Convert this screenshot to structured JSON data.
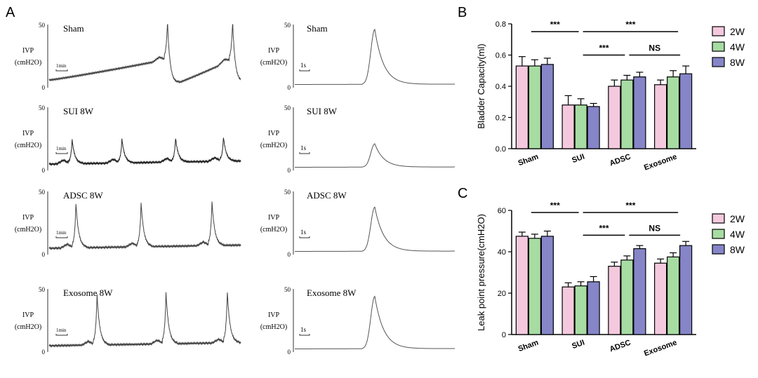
{
  "panels": {
    "a_letter": "A",
    "b_letter": "B",
    "c_letter": "C"
  },
  "traces": {
    "ylabel_line1": "IVP",
    "ylabel_line2": "(cmH2O)",
    "y_max_label": "50",
    "y_min_label": "0",
    "left_scale_label": "1min",
    "right_scale_label": "1s",
    "rows": [
      {
        "title": "Sham",
        "right_title": "Sham",
        "peak_times": [
          0.62,
          0.96
        ],
        "peak_height": 0.9,
        "right_peak": 0.87,
        "baseline": "ramp"
      },
      {
        "title": "SUI 8W",
        "right_title": "SUI 8W",
        "peak_times": [
          0.12,
          0.38,
          0.66,
          0.91
        ],
        "peak_height": 0.4,
        "right_peak": 0.37,
        "baseline": "flat"
      },
      {
        "title": "ADSC 8W",
        "right_title": "ADSC 8W",
        "peak_times": [
          0.14,
          0.48,
          0.85
        ],
        "peak_height": 0.74,
        "right_peak": 0.7,
        "baseline": "flat"
      },
      {
        "title": "Exosome 8W",
        "right_title": "Exosome 8W",
        "peak_times": [
          0.25,
          0.61,
          0.93
        ],
        "peak_height": 0.85,
        "right_peak": 0.83,
        "baseline": "flat"
      }
    ]
  },
  "chart_data": [
    {
      "type": "bar",
      "panel": "B",
      "ylabel": "Bladder Capacity(ml)",
      "categories": [
        "Sham",
        "SUI",
        "ADSC",
        "Exosome"
      ],
      "ylim": [
        0,
        0.8
      ],
      "yticks": [
        "0.0",
        "0.2",
        "0.4",
        "0.6",
        "0.8"
      ],
      "series": [
        {
          "name": "2W",
          "color": "#f4c9de",
          "values": [
            0.53,
            0.28,
            0.4,
            0.41
          ],
          "errors": [
            0.06,
            0.06,
            0.04,
            0.03
          ]
        },
        {
          "name": "4W",
          "color": "#a7dca3",
          "values": [
            0.53,
            0.28,
            0.44,
            0.46
          ],
          "errors": [
            0.04,
            0.04,
            0.03,
            0.04
          ]
        },
        {
          "name": "8W",
          "color": "#8585c8",
          "values": [
            0.54,
            0.27,
            0.46,
            0.48
          ],
          "errors": [
            0.04,
            0.02,
            0.03,
            0.05
          ]
        }
      ],
      "significance": [
        {
          "from": 0,
          "to": 1,
          "label": "***",
          "level": 0.75
        },
        {
          "from": 1,
          "to": 3,
          "label": "***",
          "level": 0.75
        },
        {
          "from": 1,
          "to": 2,
          "label": "***",
          "level": 0.6
        },
        {
          "from": 2,
          "to": 3,
          "label": "NS",
          "level": 0.6
        }
      ],
      "legend_placement": "right"
    },
    {
      "type": "bar",
      "panel": "C",
      "ylabel": "Leak point pressure(cmH2O)",
      "categories": [
        "Sham",
        "SUI",
        "ADSC",
        "Exosome"
      ],
      "ylim": [
        0,
        60
      ],
      "yticks": [
        "0",
        "20",
        "40",
        "60"
      ],
      "series": [
        {
          "name": "2W",
          "color": "#f4c9de",
          "values": [
            47.5,
            23,
            33,
            34.5
          ],
          "errors": [
            2,
            2,
            2,
            2
          ]
        },
        {
          "name": "4W",
          "color": "#a7dca3",
          "values": [
            46.5,
            23.5,
            36,
            37.5
          ],
          "errors": [
            2,
            2,
            2,
            2
          ]
        },
        {
          "name": "8W",
          "color": "#8585c8",
          "values": [
            47.5,
            25.5,
            41.5,
            43
          ],
          "errors": [
            2.5,
            2.5,
            1.5,
            2
          ]
        }
      ],
      "significance": [
        {
          "from": 0,
          "to": 1,
          "label": "***",
          "level": 59
        },
        {
          "from": 1,
          "to": 3,
          "label": "***",
          "level": 59
        },
        {
          "from": 1,
          "to": 2,
          "label": "***",
          "level": 48
        },
        {
          "from": 2,
          "to": 3,
          "label": "NS",
          "level": 48
        }
      ],
      "legend_placement": "right"
    }
  ]
}
